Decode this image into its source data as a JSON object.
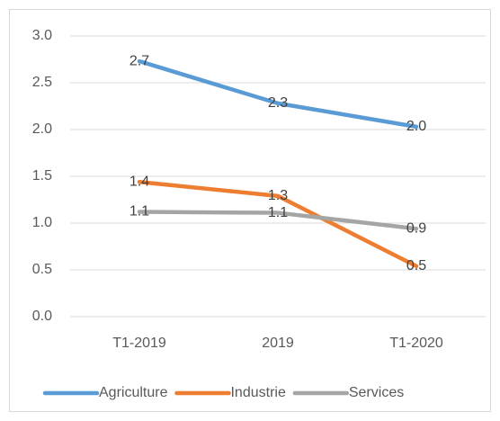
{
  "chart_data": {
    "type": "line",
    "categories": [
      "T1-2019",
      "2019",
      "T1-2020"
    ],
    "series": [
      {
        "name": "Agriculture",
        "color": "#5b9bd5",
        "values": [
          2.73,
          2.28,
          2.03
        ],
        "value_labels": [
          "2.7",
          "2.3",
          "2.0"
        ]
      },
      {
        "name": "Industrie",
        "color": "#ed7d31",
        "values": [
          1.44,
          1.29,
          0.54
        ],
        "value_labels": [
          "1.4",
          "1.3",
          "0.5"
        ]
      },
      {
        "name": "Services",
        "color": "#a5a5a5",
        "values": [
          1.12,
          1.11,
          0.94
        ],
        "value_labels": [
          "1.1",
          "1.1",
          "0.9"
        ]
      }
    ],
    "ylim": [
      0,
      3
    ],
    "yticks": [
      {
        "value": 0,
        "label": "0.0"
      },
      {
        "value": 0.5,
        "label": "0.5"
      },
      {
        "value": 1,
        "label": "1.0"
      },
      {
        "value": 1.5,
        "label": "1.5"
      },
      {
        "value": 2,
        "label": "2.0"
      },
      {
        "value": 2.5,
        "label": "2.5"
      },
      {
        "value": 3,
        "label": "3.0"
      }
    ],
    "grid": true,
    "legend": "bottom"
  }
}
